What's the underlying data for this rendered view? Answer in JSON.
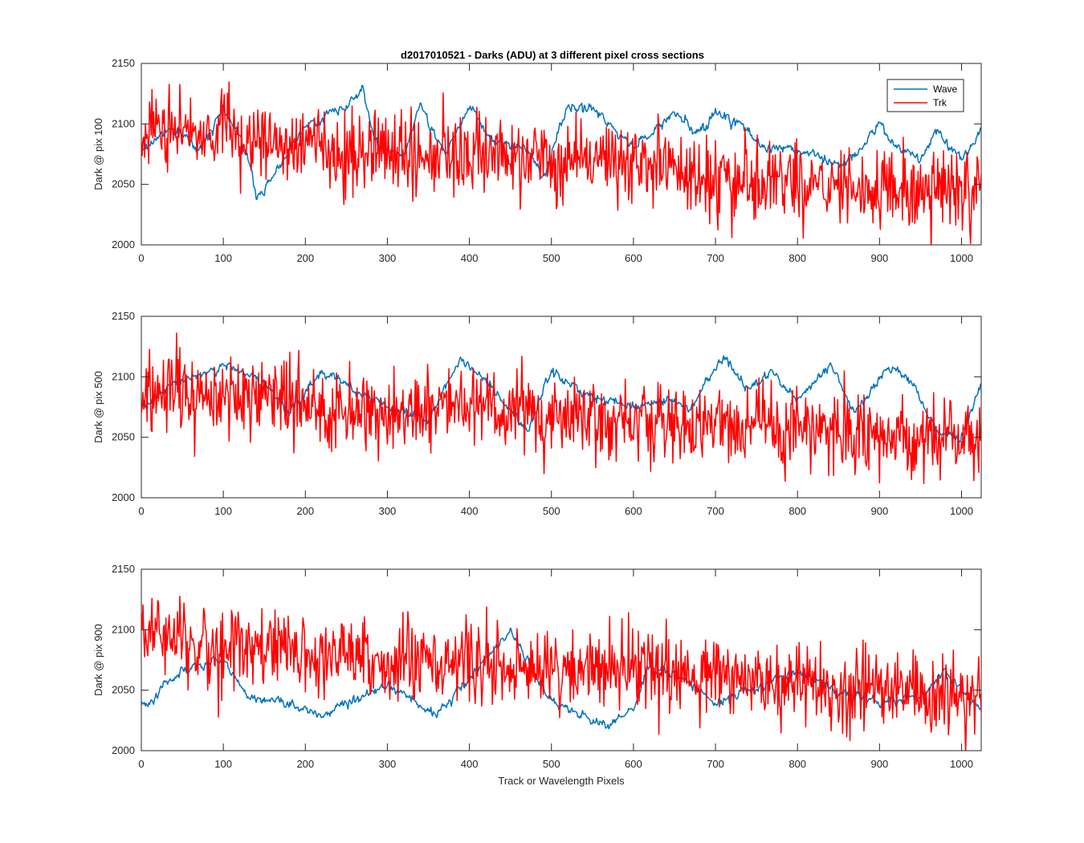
{
  "chart_data": {
    "type": "line",
    "title": "d2017010521 - Darks (ADU) at 3 different pixel cross sections",
    "xlabel": "Track or Wavelength Pixels",
    "xlim": [
      0,
      1024
    ],
    "xticks": [
      "0",
      "100",
      "200",
      "300",
      "400",
      "500",
      "600",
      "700",
      "800",
      "900",
      "1000"
    ],
    "legend_position": "top-right",
    "legend": [
      "Wave",
      "Trk"
    ],
    "colors": {
      "Wave": "#0072bd",
      "Trk": "#ff0000"
    },
    "panels": [
      {
        "ylabel": "Dark @ pix 100",
        "ylim": [
          2000,
          2150
        ],
        "yticks": [
          "2000",
          "2050",
          "2100",
          "2150"
        ],
        "show_legend": true,
        "series": [
          {
            "name": "Wave",
            "noise": 4,
            "trend": [
              [
                0,
                2080
              ],
              [
                40,
                2095
              ],
              [
                70,
                2080
              ],
              [
                100,
                2112
              ],
              [
                130,
                2075
              ],
              [
                140,
                2040
              ],
              [
                160,
                2055
              ],
              [
                200,
                2100
              ],
              [
                250,
                2115
              ],
              [
                270,
                2130
              ],
              [
                285,
                2085
              ],
              [
                320,
                2075
              ],
              [
                340,
                2115
              ],
              [
                370,
                2075
              ],
              [
                400,
                2115
              ],
              [
                430,
                2085
              ],
              [
                470,
                2080
              ],
              [
                490,
                2055
              ],
              [
                520,
                2115
              ],
              [
                560,
                2110
              ],
              [
                600,
                2080
              ],
              [
                650,
                2110
              ],
              [
                680,
                2090
              ],
              [
                700,
                2110
              ],
              [
                730,
                2100
              ],
              [
                760,
                2080
              ],
              [
                800,
                2080
              ],
              [
                850,
                2065
              ],
              [
                880,
                2080
              ],
              [
                900,
                2100
              ],
              [
                920,
                2080
              ],
              [
                950,
                2070
              ],
              [
                970,
                2095
              ],
              [
                1000,
                2070
              ],
              [
                1024,
                2095
              ]
            ]
          },
          {
            "name": "Trk",
            "noise": 16,
            "trend": [
              [
                0,
                2095
              ],
              [
                100,
                2090
              ],
              [
                200,
                2080
              ],
              [
                300,
                2075
              ],
              [
                400,
                2075
              ],
              [
                500,
                2072
              ],
              [
                600,
                2068
              ],
              [
                700,
                2055
              ],
              [
                800,
                2052
              ],
              [
                900,
                2045
              ],
              [
                1024,
                2045
              ]
            ]
          }
        ]
      },
      {
        "ylabel": "Dark @ pix 500",
        "ylim": [
          2000,
          2150
        ],
        "yticks": [
          "2000",
          "2050",
          "2100",
          "2150"
        ],
        "show_legend": false,
        "series": [
          {
            "name": "Wave",
            "noise": 4,
            "trend": [
              [
                0,
                2075
              ],
              [
                30,
                2090
              ],
              [
                100,
                2110
              ],
              [
                150,
                2095
              ],
              [
                180,
                2070
              ],
              [
                220,
                2105
              ],
              [
                260,
                2090
              ],
              [
                300,
                2075
              ],
              [
                350,
                2065
              ],
              [
                390,
                2115
              ],
              [
                430,
                2090
              ],
              [
                470,
                2055
              ],
              [
                500,
                2105
              ],
              [
                540,
                2085
              ],
              [
                600,
                2075
              ],
              [
                640,
                2080
              ],
              [
                670,
                2075
              ],
              [
                710,
                2115
              ],
              [
                740,
                2090
              ],
              [
                770,
                2105
              ],
              [
                800,
                2080
              ],
              [
                840,
                2110
              ],
              [
                870,
                2070
              ],
              [
                910,
                2110
              ],
              [
                940,
                2095
              ],
              [
                970,
                2055
              ],
              [
                1000,
                2050
              ],
              [
                1024,
                2095
              ]
            ]
          },
          {
            "name": "Trk",
            "noise": 16,
            "trend": [
              [
                0,
                2085
              ],
              [
                100,
                2090
              ],
              [
                200,
                2075
              ],
              [
                300,
                2070
              ],
              [
                400,
                2072
              ],
              [
                500,
                2068
              ],
              [
                600,
                2065
              ],
              [
                700,
                2060
              ],
              [
                800,
                2058
              ],
              [
                900,
                2052
              ],
              [
                1024,
                2045
              ]
            ]
          }
        ]
      },
      {
        "ylabel": "Dark @ pix 900",
        "ylim": [
          2000,
          2150
        ],
        "yticks": [
          "2000",
          "2050",
          "2100",
          "2150"
        ],
        "show_legend": false,
        "series": [
          {
            "name": "Wave",
            "noise": 4,
            "trend": [
              [
                0,
                2035
              ],
              [
                30,
                2055
              ],
              [
                60,
                2070
              ],
              [
                100,
                2075
              ],
              [
                130,
                2045
              ],
              [
                170,
                2040
              ],
              [
                220,
                2030
              ],
              [
                300,
                2055
              ],
              [
                360,
                2030
              ],
              [
                400,
                2060
              ],
              [
                450,
                2100
              ],
              [
                500,
                2040
              ],
              [
                570,
                2020
              ],
              [
                600,
                2035
              ],
              [
                620,
                2070
              ],
              [
                660,
                2060
              ],
              [
                700,
                2040
              ],
              [
                800,
                2065
              ],
              [
                850,
                2050
              ],
              [
                900,
                2040
              ],
              [
                950,
                2045
              ],
              [
                980,
                2065
              ],
              [
                1024,
                2035
              ]
            ]
          },
          {
            "name": "Trk",
            "noise": 16,
            "trend": [
              [
                0,
                2100
              ],
              [
                100,
                2085
              ],
              [
                200,
                2080
              ],
              [
                300,
                2075
              ],
              [
                400,
                2072
              ],
              [
                500,
                2065
              ],
              [
                600,
                2065
              ],
              [
                700,
                2060
              ],
              [
                800,
                2055
              ],
              [
                900,
                2050
              ],
              [
                1024,
                2045
              ]
            ]
          }
        ]
      }
    ]
  }
}
